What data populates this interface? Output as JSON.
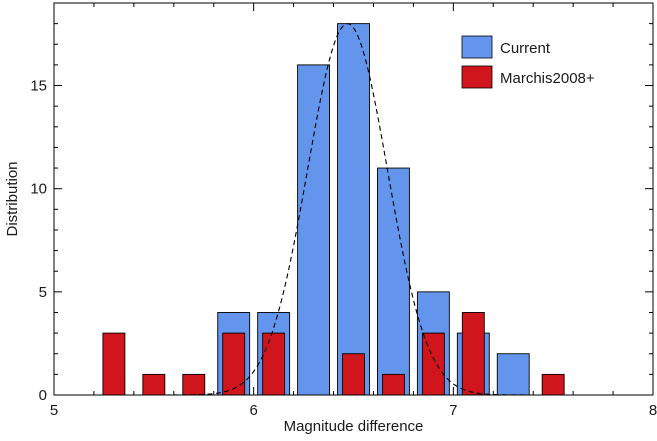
{
  "chart_data": {
    "type": "bar",
    "xlabel": "Magnitude difference",
    "ylabel": "Distribution",
    "xlim": [
      5,
      8
    ],
    "ylim": [
      0,
      19
    ],
    "xticks": [
      5,
      6,
      7,
      8
    ],
    "yticks": [
      0,
      5,
      10,
      15
    ],
    "x_tick_labels": [
      "5",
      "6",
      "7",
      "8"
    ],
    "y_tick_labels": [
      "0",
      "5",
      "10",
      "15"
    ],
    "grid": false,
    "legend_position": "top-right",
    "series": [
      {
        "name": "Current",
        "color": "#6495ED",
        "bar_width": 0.16,
        "points": [
          {
            "x": 5.9,
            "y": 4
          },
          {
            "x": 6.1,
            "y": 4
          },
          {
            "x": 6.3,
            "y": 16
          },
          {
            "x": 6.5,
            "y": 18
          },
          {
            "x": 6.7,
            "y": 11
          },
          {
            "x": 6.9,
            "y": 5
          },
          {
            "x": 7.1,
            "y": 3
          },
          {
            "x": 7.3,
            "y": 2
          }
        ]
      },
      {
        "name": "Marchis2008+",
        "color": "#D0161C",
        "bar_width": 0.11,
        "points": [
          {
            "x": 5.3,
            "y": 3
          },
          {
            "x": 5.5,
            "y": 1
          },
          {
            "x": 5.7,
            "y": 1
          },
          {
            "x": 5.9,
            "y": 3
          },
          {
            "x": 6.1,
            "y": 3
          },
          {
            "x": 6.5,
            "y": 2
          },
          {
            "x": 6.7,
            "y": 1
          },
          {
            "x": 6.9,
            "y": 3
          },
          {
            "x": 7.1,
            "y": 4
          },
          {
            "x": 7.5,
            "y": 1
          }
        ]
      }
    ],
    "fit_curve": {
      "style": "dashed",
      "shape": "gaussian",
      "mean": 6.47,
      "sigma": 0.2,
      "amplitude": 18,
      "x_range": [
        5.3,
        7.65
      ]
    }
  }
}
